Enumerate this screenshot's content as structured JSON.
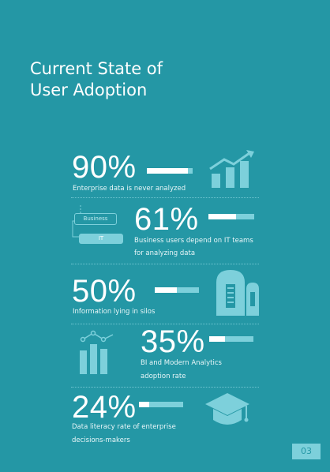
{
  "title": {
    "line1": "Current State of",
    "line2": "User Adoption"
  },
  "colors": {
    "background": "#2497a5",
    "accent": "#7dd0db",
    "fill": "#ffffff"
  },
  "stats": [
    {
      "value": "90%",
      "fraction": 0.9,
      "lines": [
        "Enterprise data is never analyzed"
      ],
      "icon": "growth-chart-icon"
    },
    {
      "value": "61%",
      "fraction": 0.61,
      "lines": [
        "Business users depend on IT teams",
        "for analyzing data"
      ],
      "icon": "business-it-flow-icon"
    },
    {
      "value": "50%",
      "fraction": 0.5,
      "lines": [
        "Information lying in silos"
      ],
      "icon": "silo-icon"
    },
    {
      "value": "35%",
      "fraction": 0.35,
      "lines": [
        "BI and Modern Analytics",
        "adoption rate"
      ],
      "icon": "bar-chart-icon"
    },
    {
      "value": "24%",
      "fraction": 0.24,
      "lines": [
        "Data literacy rate of enterprise",
        "decisions-makers"
      ],
      "icon": "graduation-cap-icon"
    }
  ],
  "flow": {
    "business": "Business",
    "it": "IT"
  },
  "page_number": "03"
}
